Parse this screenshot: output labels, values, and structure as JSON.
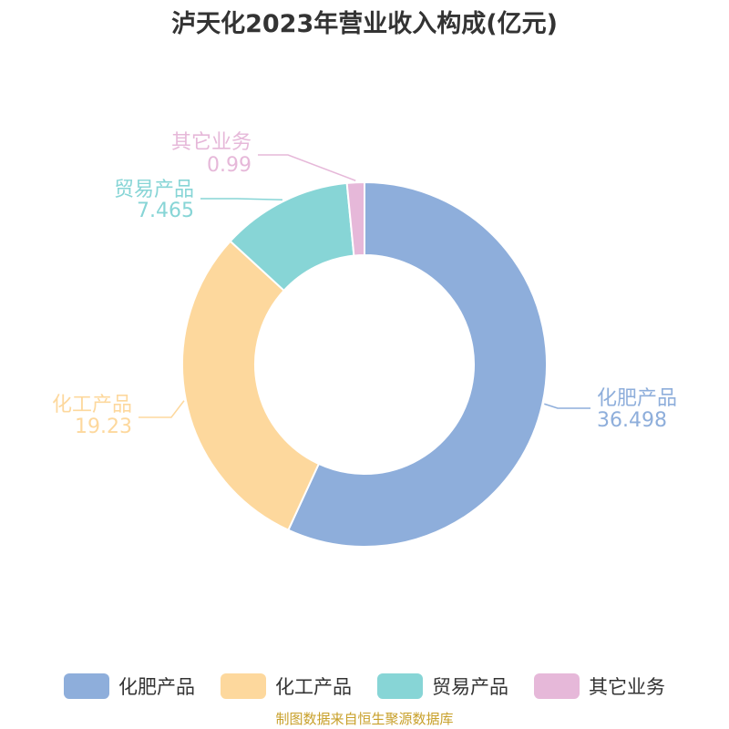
{
  "chart_data": {
    "type": "pie",
    "title": "泸天化2023年营业收入构成(亿元)",
    "donut": true,
    "categories": [
      "化肥产品",
      "化工产品",
      "贸易产品",
      "其它业务"
    ],
    "values": [
      36.498,
      19.23,
      7.465,
      0.99
    ],
    "value_labels": [
      "36.498",
      "19.23",
      "7.465",
      "0.99"
    ],
    "colors": [
      "#8eaedb",
      "#fdd89d",
      "#87d5d6",
      "#e6b8d9"
    ],
    "legend_position": "bottom"
  },
  "source_note": "制图数据来自恒生聚源数据库"
}
